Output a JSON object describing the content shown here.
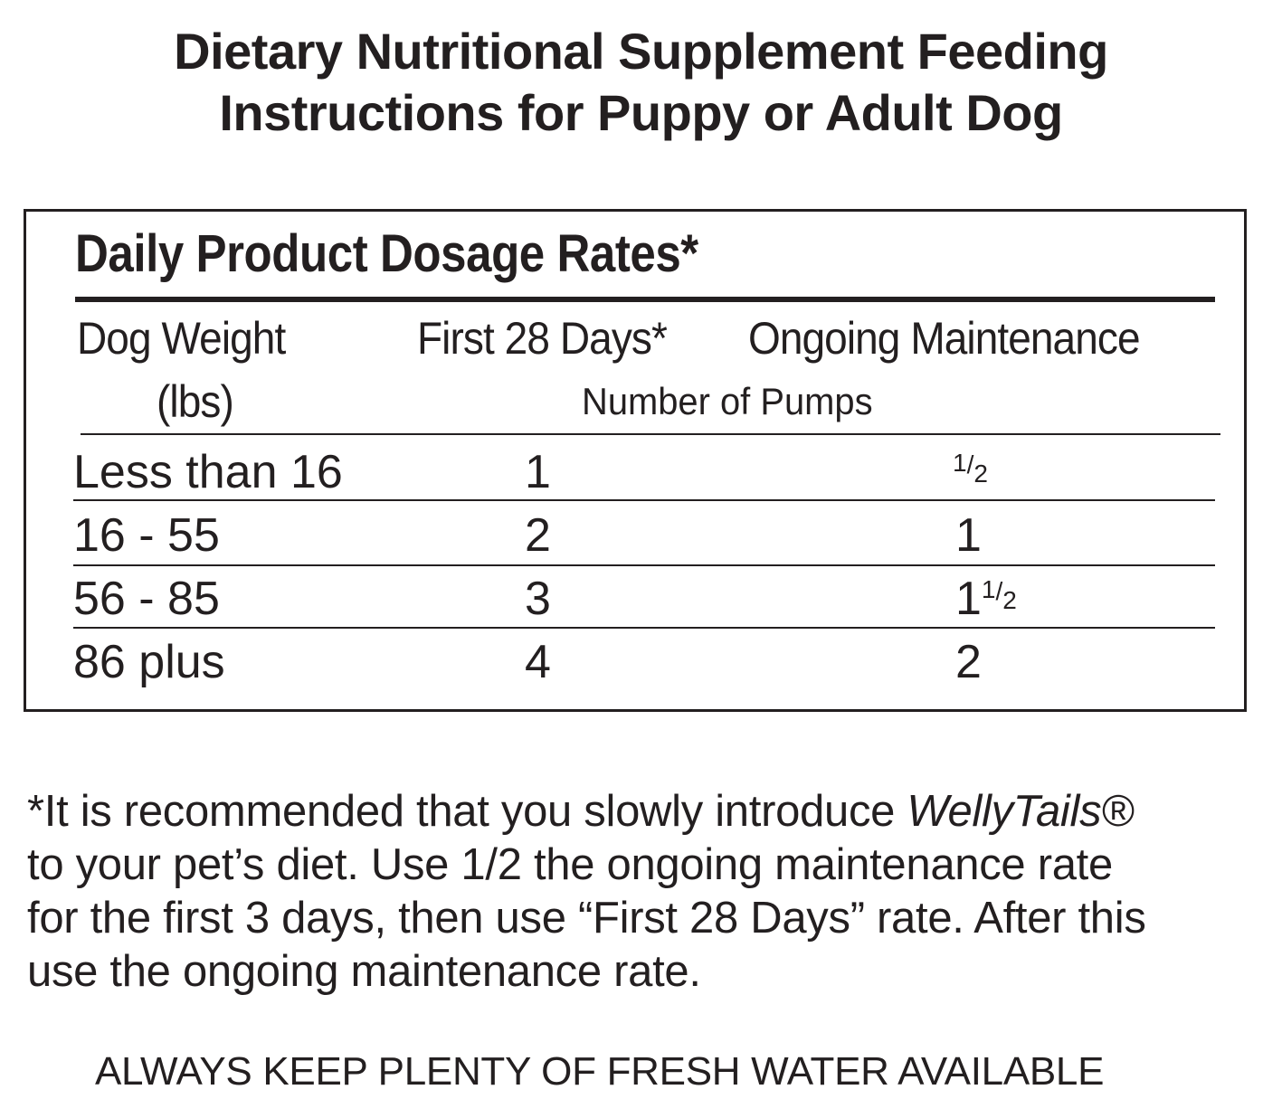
{
  "title": {
    "line1": "Dietary Nutritional Supplement Feeding",
    "line2": "Instructions for Puppy or Adult Dog"
  },
  "table": {
    "heading": "Daily Product Dosage Rates*",
    "col_weight_line1": "Dog Weight",
    "col_weight_line2": "(lbs)",
    "col_first": "First 28 Days*",
    "col_ongoing": "Ongoing Maintenance",
    "subheading": "Number of Pumps",
    "rows": [
      {
        "weight": "Less than 16",
        "first": "1",
        "ongoing_whole": "",
        "ongoing_num": "1",
        "ongoing_den": "2"
      },
      {
        "weight": "16 - 55",
        "first": "2",
        "ongoing_whole": "1",
        "ongoing_num": "",
        "ongoing_den": ""
      },
      {
        "weight": "56 - 85",
        "first": "3",
        "ongoing_whole": "1",
        "ongoing_num": "1",
        "ongoing_den": "2"
      },
      {
        "weight": "86 plus",
        "first": "4",
        "ongoing_whole": "2",
        "ongoing_num": "",
        "ongoing_den": ""
      }
    ]
  },
  "note": {
    "line1_start": "*It is recommended that you slowly introduce ",
    "brand": "WellyTails®",
    "line2": "to your pet’s diet. Use 1/2 the ongoing maintenance rate",
    "line3": "for the first 3 days, then use “First  28 Days” rate. After this",
    "line4": "use the ongoing maintenance rate."
  },
  "footer": "ALWAYS KEEP PLENTY OF FRESH WATER AVAILABLE"
}
